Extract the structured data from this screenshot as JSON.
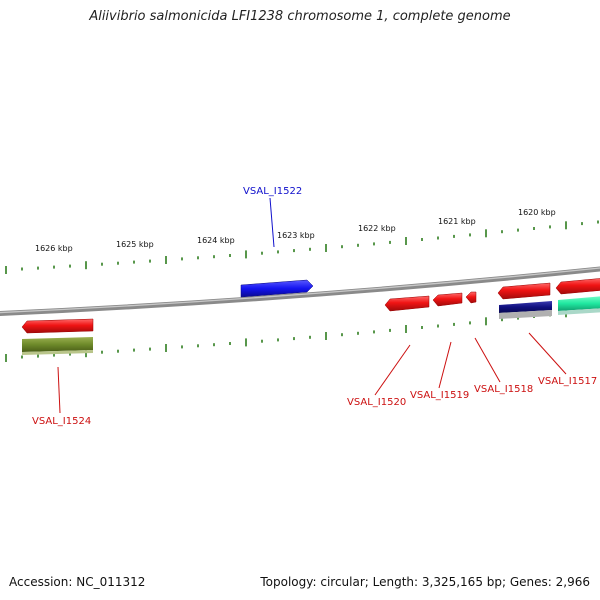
{
  "title": "Aliivibrio salmonicida LFI1238 chromosome 1, complete genome",
  "footer": {
    "accession": "Accession: NC_011312",
    "summary": "Topology: circular; Length: 3,325,165 bp; Genes: 2,966"
  },
  "ruler_upper": [
    "1620 kbp",
    "1621 kbp",
    "1622 kbp",
    "1623 kbp",
    "1624 kbp",
    "1625 kbp",
    "1626 kbp"
  ],
  "gene_labels": [
    "VSAL_I1522",
    "VSAL_I1524",
    "VSAL_I1520",
    "VSAL_I1519",
    "VSAL_I1518",
    "VSAL_I1517"
  ],
  "colors": {
    "backbone": "#8a8a8a",
    "ticks": "#2e7d1e",
    "forward_gene": "#1010e8",
    "reverse_gene": "#e81010",
    "olive_feature": "#6e8a2a",
    "navy_feature": "#101080",
    "teal_feature": "#20e8a0",
    "label_blue": "#1010cc",
    "label_red": "#cc1010"
  }
}
